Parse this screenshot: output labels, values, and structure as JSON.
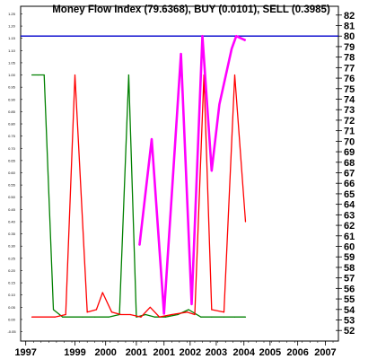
{
  "chart_data": {
    "type": "line",
    "title": "Money Flow Index (79.6368), BUY (0.0101), SELL (0.3985)",
    "x_ticks": [
      "1997",
      "1999",
      "2000",
      "2001",
      "2001",
      "2002",
      "2003",
      "2004",
      "2005",
      "2006",
      "2007"
    ],
    "x_tick_years": [
      1997.25,
      1998.85,
      1999.85,
      2000.85,
      2001.75,
      2002.6,
      2003.45,
      2004.35,
      2005.2,
      2006.1,
      2007.0
    ],
    "xlim": [
      1996.85,
      2007.6
    ],
    "left_axis": {
      "ylim": [
        -0.07,
        1.27
      ],
      "ticks": [
        "-0.05",
        "0.00",
        "0.05",
        "0.10",
        "0.15",
        "0.20",
        "0.25",
        "0.30",
        "0.35",
        "0.40",
        "0.45",
        "0.50",
        "0.55",
        "0.60",
        "0.65",
        "0.70",
        "0.75",
        "0.80",
        "0.85",
        "0.90",
        "0.95",
        "1.00",
        "1.05",
        "1.10",
        "1.15",
        "1.20",
        "1.25"
      ]
    },
    "right_axis": {
      "ylim": [
        51.25,
        82.75
      ],
      "ticks": [
        "52",
        "53",
        "54",
        "55",
        "56",
        "57",
        "58",
        "59",
        "60",
        "61",
        "62",
        "63",
        "64",
        "65",
        "66",
        "67",
        "68",
        "69",
        "70",
        "71",
        "72",
        "73",
        "74",
        "75",
        "76",
        "77",
        "78",
        "79",
        "80",
        "81",
        "82"
      ]
    },
    "reference_line": {
      "value": 80,
      "axis": "right",
      "color": "#0000cc"
    },
    "series": [
      {
        "color": "#008000",
        "axis": "left",
        "x": [
          1997.45,
          1997.65,
          1997.85,
          1998.15,
          1998.45,
          1999.1,
          1999.5,
          1999.95,
          2000.3,
          2000.6,
          2000.85,
          2001.15,
          2001.45,
          2001.8,
          2002.2,
          2002.55,
          2002.95,
          2003.3,
          2003.7,
          2004.05,
          2004.4
        ],
        "y": [
          1.0,
          1.0,
          1.0,
          0.04,
          0.01,
          0.01,
          0.01,
          0.01,
          0.02,
          1.0,
          0.01,
          0.02,
          0.01,
          0.01,
          0.02,
          0.04,
          0.01,
          0.01,
          0.01,
          0.01,
          0.01
        ]
      },
      {
        "color": "#ff0000",
        "axis": "left",
        "x": [
          1997.45,
          1998.2,
          1998.55,
          1998.85,
          1999.25,
          1999.55,
          1999.75,
          2000.05,
          2000.35,
          2000.65,
          2001.0,
          2001.3,
          2001.6,
          2002.0,
          2002.5,
          2002.75,
          2003.05,
          2003.3,
          2003.7,
          2004.05,
          2004.4
        ],
        "y": [
          0.01,
          0.01,
          0.02,
          1.0,
          0.03,
          0.04,
          0.11,
          0.03,
          0.02,
          0.02,
          0.01,
          0.05,
          0.01,
          0.02,
          0.03,
          0.02,
          1.0,
          0.04,
          0.03,
          1.0,
          0.4
        ]
      },
      {
        "color": "#ff00ff",
        "axis": "right",
        "x": [
          2000.95,
          2001.35,
          2001.75,
          2002.3,
          2002.65,
          2003.0,
          2003.3,
          2003.55,
          2003.95,
          2004.1,
          2004.4
        ],
        "y": [
          60.1,
          70.2,
          53.6,
          78.3,
          54.5,
          80.0,
          67.2,
          73.5,
          78.8,
          80.0,
          79.6
        ]
      }
    ],
    "grid": false,
    "legend": "none"
  }
}
